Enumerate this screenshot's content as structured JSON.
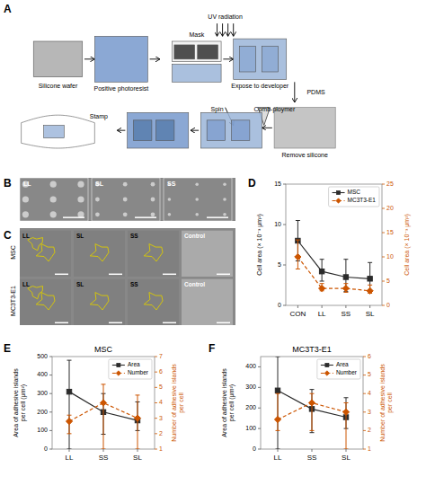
{
  "chart_data": [
    {
      "type": "schematic",
      "annotations": [
        "A",
        "Silicone wafer",
        "Positive photoresist",
        "UV radiation",
        "Expose to developer",
        "Mask",
        "Spin",
        "Comb-ploymer",
        "Remove silicone",
        "PDMS",
        "Stamp"
      ]
    },
    {
      "type": "image",
      "annotations": [
        "B"
      ],
      "categories": [
        "LL",
        "SL",
        "SS"
      ]
    },
    {
      "type": "image",
      "annotations": [
        "C",
        "MSC",
        "MC3T3-E1"
      ],
      "categories": [
        "LL",
        "SL",
        "SS",
        "Control"
      ]
    },
    {
      "type": "line",
      "annotations": [
        "D"
      ],
      "categories": [
        "CON",
        "LL",
        "SS",
        "SL"
      ],
      "y_label": "Cell area (× 10⁻³ μm²)",
      "y2_label": "Cell area (× 10⁻³ μm²)",
      "ylim": [
        0,
        15
      ],
      "yticks": [
        0,
        5,
        10,
        15
      ],
      "y2lim": [
        0,
        25
      ],
      "y2ticks": [
        0,
        5,
        10,
        15,
        20,
        25
      ],
      "grid": false,
      "legend": "upper right",
      "series": [
        {
          "name": "MSC",
          "color": "#2b2b2b",
          "marker": "square",
          "line_style": "solid",
          "values": [
            8.0,
            4.2,
            3.5,
            3.3
          ],
          "error_low": [
            2.5,
            1.2,
            1.8,
            1.5
          ],
          "error_high": [
            2.5,
            1.5,
            2.2,
            2.0
          ]
        },
        {
          "name": "MC3T3-E1",
          "axis": "y2",
          "color": "#cc5500",
          "marker": "diamond",
          "line_style": "dashed",
          "values": [
            10.0,
            3.5,
            3.5,
            3.0
          ],
          "error_low": [
            2.5,
            0.5,
            0.8,
            0.5
          ],
          "error_high": [
            3.5,
            1.0,
            1.0,
            1.2
          ]
        }
      ]
    },
    {
      "type": "line",
      "annotations": [
        "E"
      ],
      "title": "MSC",
      "categories": [
        "LL",
        "SS",
        "SL"
      ],
      "y_label": "Area of adhesive islands\nper cell (μm²)",
      "y2_label": "Number of adhesive islands\nper cell",
      "ylim": [
        0,
        500
      ],
      "yticks": [
        0,
        100,
        200,
        300,
        400,
        500
      ],
      "y2lim": [
        1,
        7
      ],
      "y2ticks": [
        1,
        2,
        3,
        4,
        5,
        6,
        7
      ],
      "grid": false,
      "legend": "upper right",
      "series": [
        {
          "name": "Area",
          "color": "#2b2b2b",
          "marker": "square",
          "line_style": "solid",
          "values": [
            310,
            200,
            155
          ],
          "error_low": [
            310,
            120,
            55
          ],
          "error_high": [
            170,
            100,
            100
          ]
        },
        {
          "name": "Number",
          "axis": "y2",
          "color": "#cc5500",
          "marker": "diamond",
          "line_style": "dashed",
          "values": [
            2.8,
            4.0,
            3.0
          ],
          "error_low": [
            0.8,
            3.0,
            2.0
          ],
          "error_high": [
            0.4,
            1.2,
            1.5
          ]
        }
      ]
    },
    {
      "type": "line",
      "annotations": [
        "F"
      ],
      "title": "MC3T3-E1",
      "categories": [
        "LL",
        "SS",
        "SL"
      ],
      "y_label": "Area of adhesive islands\nper cell (μm²)",
      "y2_label": "Number of adhesive islands\nper cell",
      "ylim": [
        0,
        450
      ],
      "yticks": [
        0,
        100,
        200,
        300,
        400
      ],
      "y2lim": [
        1,
        6
      ],
      "y2ticks": [
        1,
        2,
        3,
        4,
        5,
        6
      ],
      "grid": false,
      "legend": "upper right",
      "series": [
        {
          "name": "Area",
          "color": "#2b2b2b",
          "marker": "square",
          "line_style": "solid",
          "values": [
            285,
            195,
            155
          ],
          "error_low": [
            285,
            115,
            55
          ],
          "error_high": [
            165,
            95,
            95
          ]
        },
        {
          "name": "Number",
          "axis": "y2",
          "color": "#cc5500",
          "marker": "diamond",
          "line_style": "dashed",
          "values": [
            2.6,
            3.5,
            3.0
          ],
          "error_low": [
            0.6,
            1.5,
            2.0
          ],
          "error_high": [
            1.4,
            0.5,
            0.5
          ]
        }
      ]
    }
  ]
}
